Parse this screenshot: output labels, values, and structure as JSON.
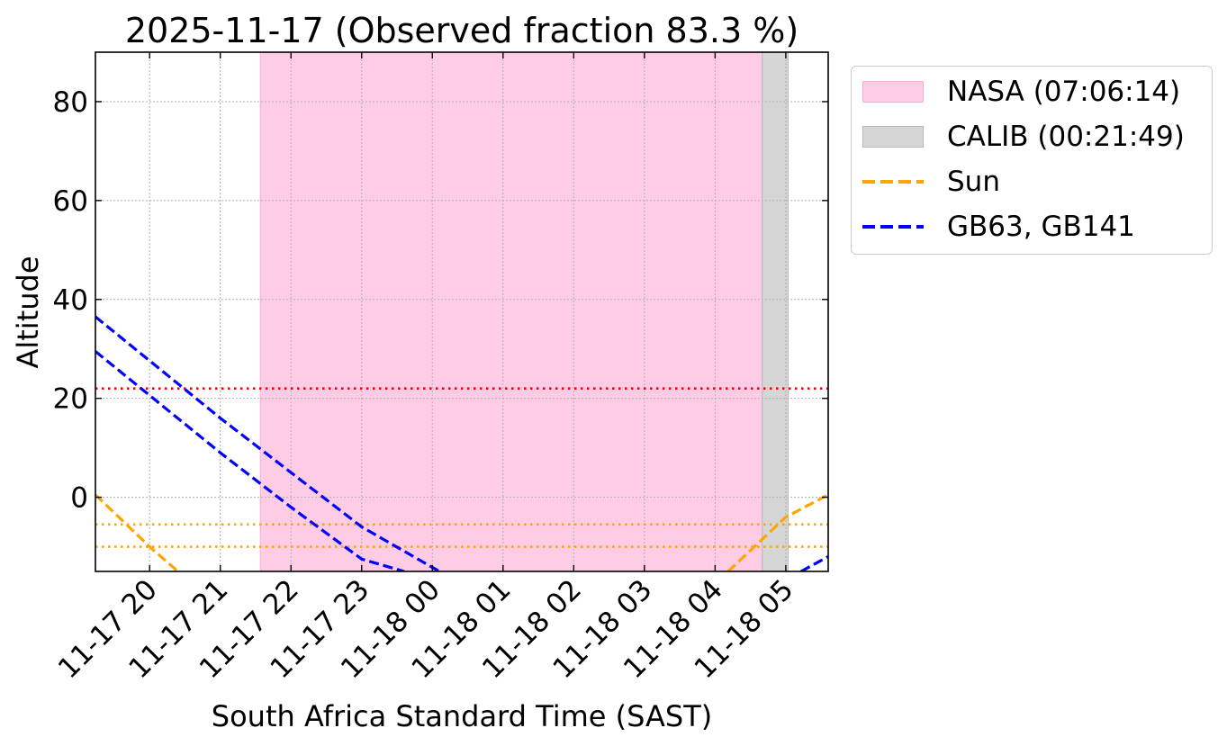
{
  "colors": {
    "nasa_fill": "#ffcce6",
    "nasa_edge": "#f7b0d4",
    "calib_fill": "#d6d6d6",
    "calib_edge": "#b8b8b8",
    "sun": "#ffa500",
    "targets": "#0000ff",
    "limit_red": "#ff0000",
    "twilight": "#ffa500",
    "grid": "#b0b0b0"
  },
  "chart_data": {
    "type": "line",
    "title": "2025-11-17 (Observed fraction 83.3 %)",
    "xlabel": "South Africa Standard Time (SAST)",
    "ylabel": "Altitude",
    "xlim": [
      "2025-11-17 19:14",
      "2025-11-18 05:36"
    ],
    "ylim": [
      -15,
      90
    ],
    "y_ticks": [
      0,
      20,
      40,
      60,
      80
    ],
    "x_ticks": [
      {
        "time": "2025-11-17 20:00",
        "label": "11-17 20"
      },
      {
        "time": "2025-11-17 21:00",
        "label": "11-17 21"
      },
      {
        "time": "2025-11-17 22:00",
        "label": "11-17 22"
      },
      {
        "time": "2025-11-17 23:00",
        "label": "11-17 23"
      },
      {
        "time": "2025-11-18 00:00",
        "label": "11-18 00"
      },
      {
        "time": "2025-11-18 01:00",
        "label": "11-18 01"
      },
      {
        "time": "2025-11-18 02:00",
        "label": "11-18 02"
      },
      {
        "time": "2025-11-18 03:00",
        "label": "11-18 03"
      },
      {
        "time": "2025-11-18 04:00",
        "label": "11-18 04"
      },
      {
        "time": "2025-11-18 05:00",
        "label": "11-18 05"
      }
    ],
    "grid": true,
    "legend_placement": "outside upper right",
    "spans": [
      {
        "name": "NASA (07:06:14)",
        "start": "2025-11-17 21:34",
        "end": "2025-11-18 04:40",
        "color": "nasa"
      },
      {
        "name": "CALIB (00:21:49)",
        "start": "2025-11-18 04:40",
        "end": "2025-11-18 05:02",
        "color": "calib"
      }
    ],
    "series": [
      {
        "name": "Sun",
        "style": "dashed",
        "color": "sun",
        "points": [
          [
            "2025-11-17 19:14",
            0.5
          ],
          [
            "2025-11-17 20:00",
            -10
          ],
          [
            "2025-11-17 20:24",
            -15
          ]
        ]
      },
      {
        "name": "Sun",
        "style": "dashed",
        "color": "sun",
        "points": [
          [
            "2025-11-18 04:11",
            -15
          ],
          [
            "2025-11-18 05:00",
            -4
          ],
          [
            "2025-11-18 05:36",
            0.5
          ]
        ]
      },
      {
        "name": "GB63, GB141",
        "style": "dashed",
        "color": "targets",
        "points": [
          [
            "2025-11-17 19:14",
            36.5
          ],
          [
            "2025-11-17 21:00",
            16
          ],
          [
            "2025-11-17 22:00",
            5
          ],
          [
            "2025-11-17 23:00",
            -6
          ],
          [
            "2025-11-18 00:06",
            -15
          ]
        ]
      },
      {
        "name": "",
        "style": "dashed",
        "color": "targets",
        "points": [
          [
            "2025-11-17 19:14",
            29.5
          ],
          [
            "2025-11-17 21:00",
            9
          ],
          [
            "2025-11-17 22:00",
            -2
          ],
          [
            "2025-11-17 23:00",
            -12.5
          ],
          [
            "2025-11-17 23:36",
            -15
          ]
        ]
      },
      {
        "name": "",
        "style": "dashed",
        "color": "targets",
        "points": [
          [
            "2025-11-18 05:13",
            -15
          ],
          [
            "2025-11-18 05:36",
            -12
          ]
        ]
      }
    ],
    "hlines": [
      {
        "y": 22,
        "style": "dotted",
        "color": "limit_red"
      },
      {
        "y": -5.5,
        "style": "dotted",
        "color": "twilight"
      },
      {
        "y": -10,
        "style": "dotted",
        "color": "twilight"
      }
    ]
  },
  "legend": {
    "items": [
      {
        "label": "NASA (07:06:14)",
        "kind": "patch",
        "color": "nasa"
      },
      {
        "label": "CALIB (00:21:49)",
        "kind": "patch",
        "color": "calib"
      },
      {
        "label": "Sun",
        "kind": "line",
        "color": "sun"
      },
      {
        "label": "GB63, GB141",
        "kind": "line",
        "color": "targets"
      }
    ]
  }
}
